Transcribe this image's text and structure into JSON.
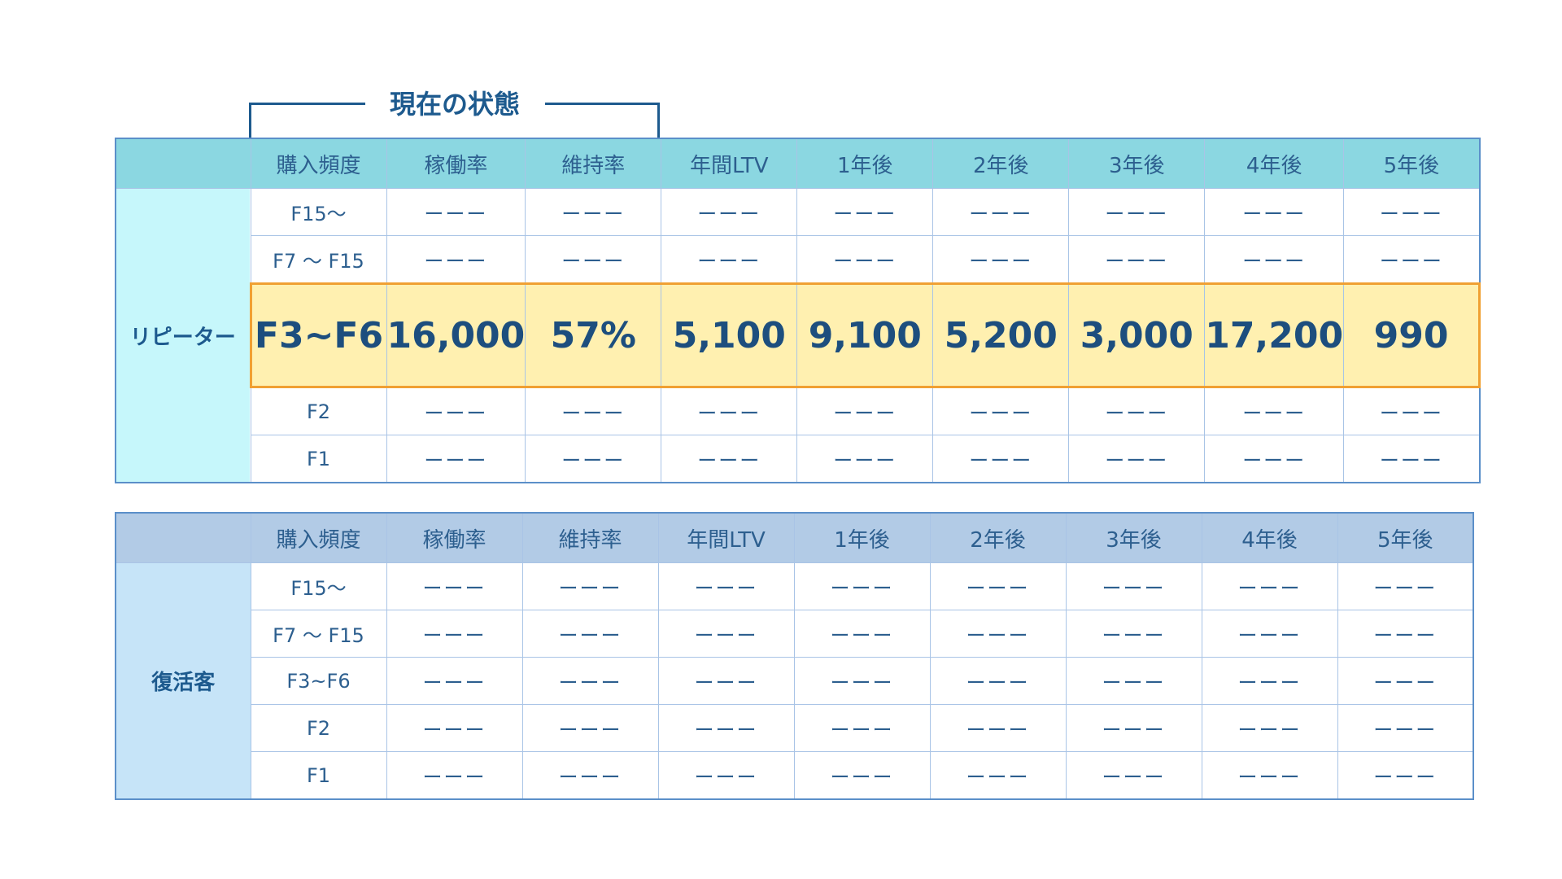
{
  "status_label": "現在の状態",
  "headers": [
    "購入頻度",
    "稼働率",
    "維持率",
    "年間LTV",
    "1年後",
    "2年後",
    "3年後",
    "4年後",
    "5年後"
  ],
  "dash": "ーーー",
  "repeater": {
    "label": "リピーター",
    "rows": [
      {
        "freq": "F15〜",
        "values": [
          "ーーー",
          "ーーー",
          "ーーー",
          "ーーー",
          "ーーー",
          "ーーー",
          "ーーー",
          "ーーー"
        ]
      },
      {
        "freq": "F7 〜 F15",
        "values": [
          "ーーー",
          "ーーー",
          "ーーー",
          "ーーー",
          "ーーー",
          "ーーー",
          "ーーー",
          "ーーー"
        ]
      },
      {
        "freq": "F3~F6",
        "values": [
          "16,000",
          "57%",
          "5,100",
          "9,100",
          "5,200",
          "3,000",
          "17,200",
          "990"
        ]
      },
      {
        "freq": "F2",
        "values": [
          "ーーー",
          "ーーー",
          "ーーー",
          "ーーー",
          "ーーー",
          "ーーー",
          "ーーー",
          "ーーー"
        ]
      },
      {
        "freq": "F1",
        "values": [
          "ーーー",
          "ーーー",
          "ーーー",
          "ーーー",
          "ーーー",
          "ーーー",
          "ーーー",
          "ーーー"
        ]
      }
    ]
  },
  "revived": {
    "label": "復活客",
    "rows": [
      {
        "freq": "F15〜",
        "values": [
          "ーーー",
          "ーーー",
          "ーーー",
          "ーーー",
          "ーーー",
          "ーーー",
          "ーーー",
          "ーーー"
        ]
      },
      {
        "freq": "F7 〜 F15",
        "values": [
          "ーーー",
          "ーーー",
          "ーーー",
          "ーーー",
          "ーーー",
          "ーーー",
          "ーーー",
          "ーーー"
        ]
      },
      {
        "freq": "F3~F6",
        "values": [
          "ーーー",
          "ーーー",
          "ーーー",
          "ーーー",
          "ーーー",
          "ーーー",
          "ーーー",
          "ーーー"
        ]
      },
      {
        "freq": "F2",
        "values": [
          "ーーー",
          "ーーー",
          "ーーー",
          "ーーー",
          "ーーー",
          "ーーー",
          "ーーー",
          "ーーー"
        ]
      },
      {
        "freq": "F1",
        "values": [
          "ーーー",
          "ーーー",
          "ーーー",
          "ーーー",
          "ーーー",
          "ーーー",
          "ーーー",
          "ーーー"
        ]
      }
    ]
  }
}
